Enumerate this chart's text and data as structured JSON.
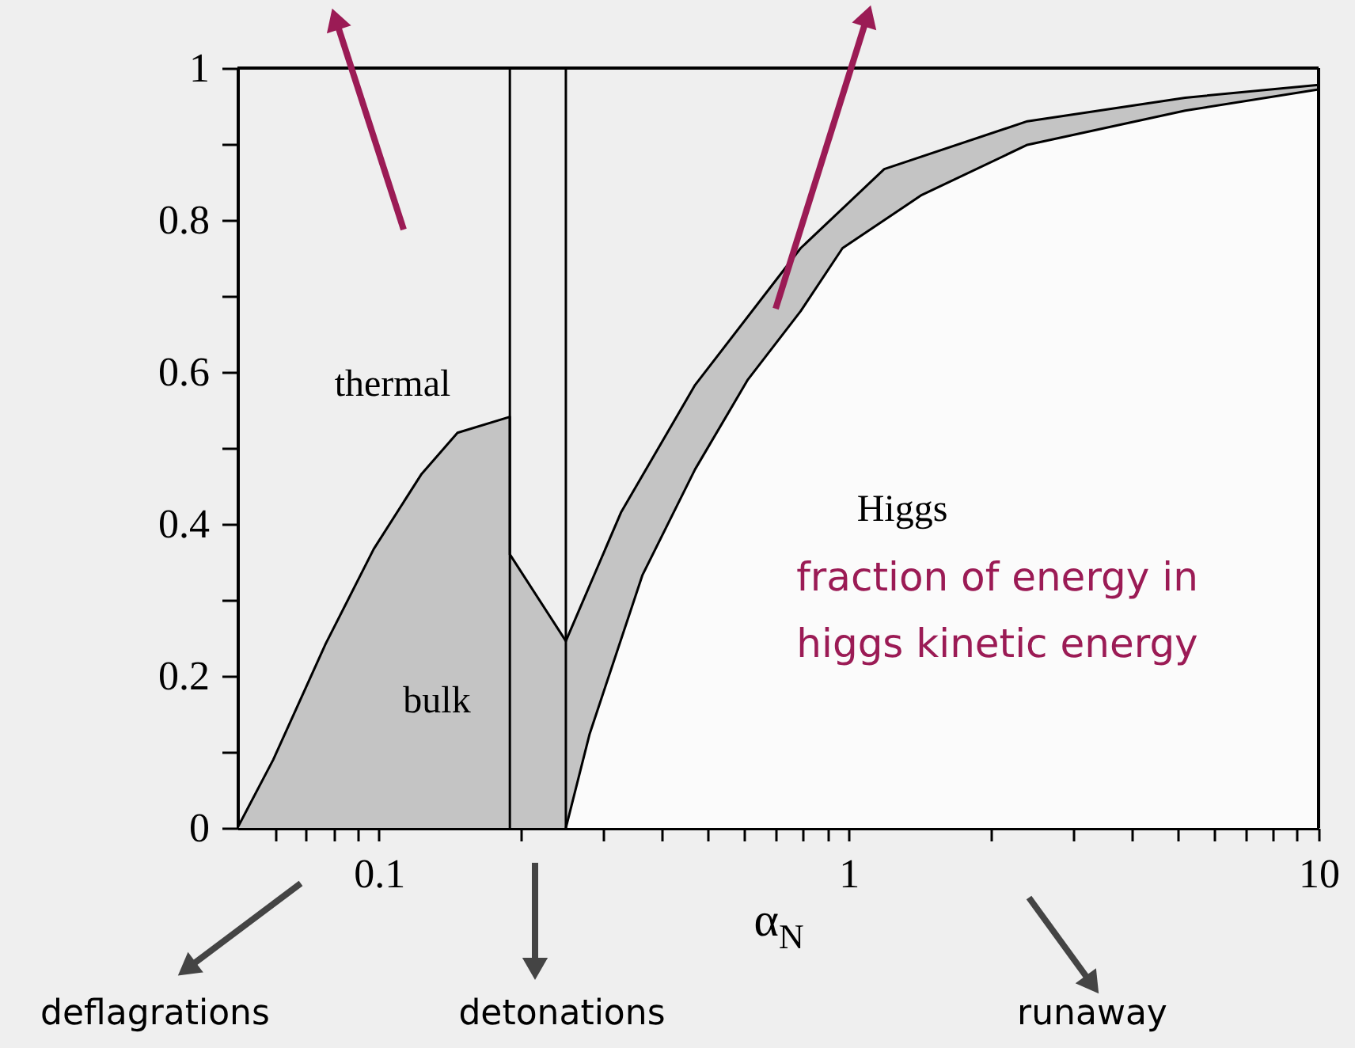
{
  "chart_data": {
    "type": "area",
    "xlabel": "α$_{N}$",
    "series": [
      {
        "color": "#c4c4c4",
        "x": [
          0.05,
          0.0596,
          0.077,
          0.0975,
          0.123,
          0.147,
          0.19,
          0.19,
          0.25,
          0.328,
          0.471,
          0.79,
          1.19,
          2.4,
          5.2,
          10
        ],
        "values": [
          0,
          0.09,
          0.242,
          0.367,
          0.465,
          0.52,
          0.541,
          0.36,
          0.246,
          0.416,
          0.583,
          0.763,
          0.867,
          0.93,
          0.961,
          0.978
        ]
      },
      {
        "color": "#fbfbfb",
        "x": [
          0.25,
          0.281,
          0.364,
          0.471,
          0.61,
          0.79,
          0.97,
          1.43,
          2.4,
          5.2,
          10
        ],
        "values": [
          0,
          0.124,
          0.333,
          0.472,
          0.59,
          0.68,
          0.763,
          0.833,
          0.899,
          0.944,
          0.972
        ]
      }
    ],
    "xlim": [
      0.05,
      10
    ],
    "ylim": [
      0,
      1
    ],
    "xticks": [
      {
        "value": 0.06,
        "label": null
      },
      {
        "value": 0.07,
        "label": null
      },
      {
        "value": 0.08,
        "label": null
      },
      {
        "value": 0.09,
        "label": null
      },
      0.1,
      {
        "value": 0.2,
        "label": null
      },
      {
        "value": 0.3,
        "label": null
      },
      {
        "value": 0.4,
        "label": null
      },
      {
        "value": 0.5,
        "label": null
      },
      {
        "value": 0.6,
        "label": null
      },
      {
        "value": 0.7,
        "label": null
      },
      {
        "value": 0.8,
        "label": null
      },
      {
        "value": 0.9,
        "label": null
      },
      1,
      {
        "value": 2,
        "label": null
      },
      {
        "value": 3,
        "label": null
      },
      {
        "value": 4,
        "label": null
      },
      {
        "value": 5,
        "label": null
      },
      {
        "value": 6,
        "label": null
      },
      {
        "value": 7,
        "label": null
      },
      {
        "value": 8,
        "label": null
      },
      {
        "value": 9,
        "label": null
      },
      10
    ],
    "yticks": [
      0,
      {
        "value": 0.1,
        "label": null
      },
      0.2,
      {
        "value": 0.3,
        "label": null
      },
      0.4,
      {
        "value": 0.5,
        "label": null
      },
      0.6,
      {
        "value": 0.7,
        "label": null
      },
      0.8,
      {
        "value": 0.9,
        "label": null
      },
      1
    ],
    "log": "x",
    "ref_lines": [
      {
        "axis": "x",
        "value": 0.19,
        "label": null
      },
      {
        "axis": "x",
        "value": 0.25,
        "label": null
      }
    ],
    "annotations": [
      "thermal",
      "bulk",
      "Higgs",
      "fraction of energy in higgs kinetic energy",
      "deflagrations",
      "detonations",
      "runaway"
    ]
  }
}
